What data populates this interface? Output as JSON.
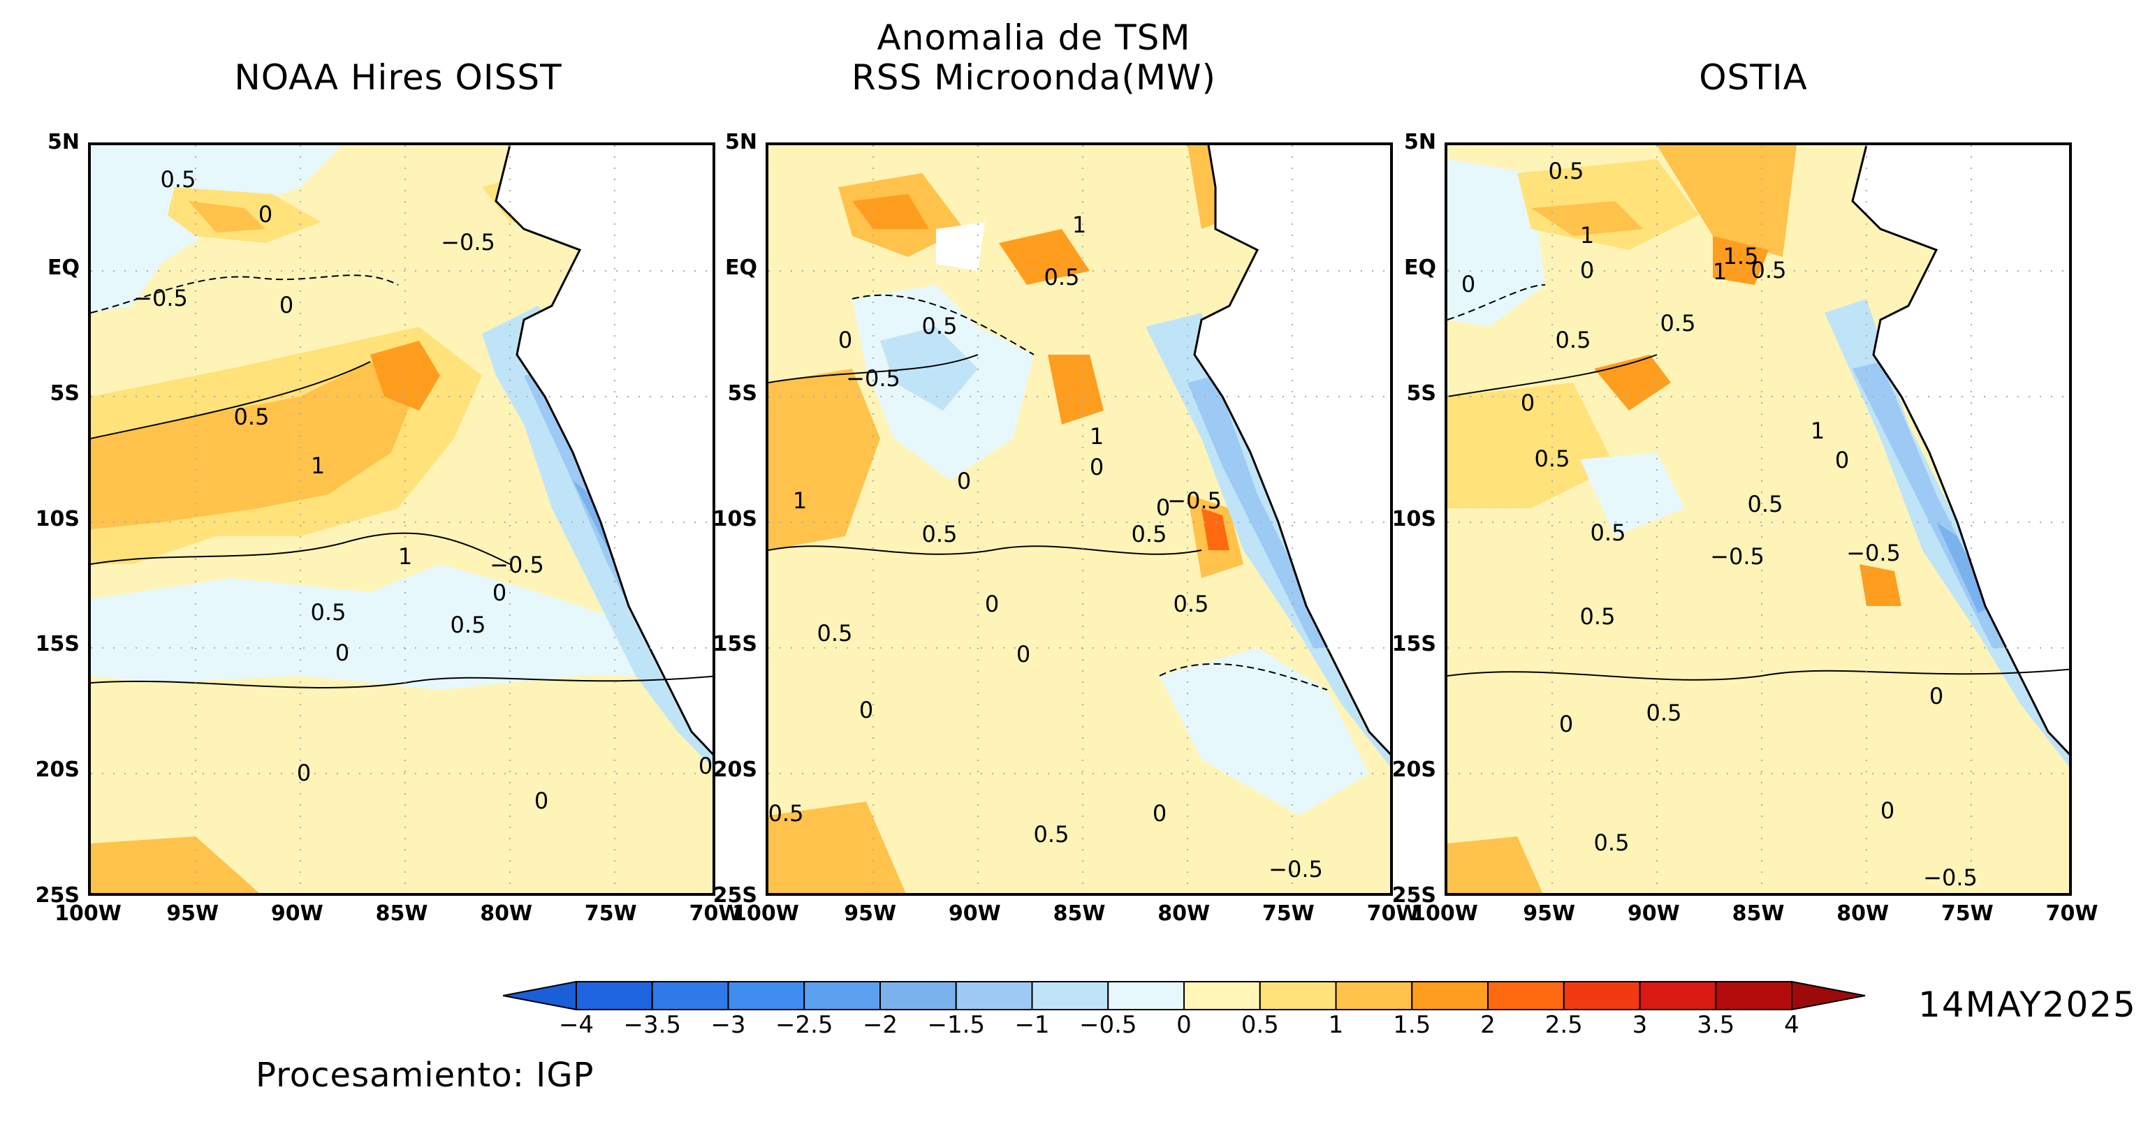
{
  "header": {
    "main_title_line1": "Anomalia de TSM",
    "main_title_line2": "RSS Microonda(MW)",
    "panel_titles": [
      "NOAA Hires OISST",
      "",
      "OSTIA"
    ]
  },
  "axes": {
    "lat_ticks": [
      "5N",
      "EQ",
      "5S",
      "10S",
      "15S",
      "20S",
      "25S"
    ],
    "lon_ticks": [
      "100W",
      "95W",
      "90W",
      "85W",
      "80W",
      "75W",
      "70W"
    ]
  },
  "colorbar": {
    "ticks": [
      "−4",
      "−3.5",
      "−3",
      "−2.5",
      "−2",
      "−1.5",
      "−1",
      "−0.5",
      "0",
      "0.5",
      "1",
      "1.5",
      "2",
      "2.5",
      "3",
      "3.5",
      "4"
    ],
    "colors": [
      "#1e63e0",
      "#2f7ae8",
      "#3f8df0",
      "#5aa0ee",
      "#7ab2ee",
      "#9ccaf4",
      "#bfe4f7",
      "#e6f8fb",
      "#fff6b8",
      "#ffe27a",
      "#ffc24a",
      "#ff9d1e",
      "#ff6a10",
      "#f23a12",
      "#d81a12",
      "#b40c0c"
    ],
    "under_color": "#1a5ed8",
    "over_color": "#9c0a0a"
  },
  "date": "14MAY2025",
  "footer": "Procesamiento: IGP",
  "panels": [
    {
      "contour_labels": [
        "0.5",
        "0",
        "−0.5",
        "−0.5",
        "0",
        "0.5",
        "1",
        "1",
        "0.5",
        "0",
        "0.5",
        "−0.5",
        "0",
        "0",
        "0",
        "0"
      ]
    },
    {
      "contour_labels": [
        "1",
        "0.5",
        "0.5",
        "0",
        "−0.5",
        "1",
        "0",
        "0",
        "1",
        "0.5",
        "0",
        "−0.5",
        "0.5",
        "0.5",
        "0.5",
        "0",
        "0",
        "0",
        "0.5",
        "0",
        "−0.5",
        "0.5"
      ]
    },
    {
      "contour_labels": [
        "0.5",
        "1",
        "0",
        "1.5",
        "0.5",
        "1",
        "0.5",
        "0",
        "0.5",
        "0",
        "1",
        "0",
        "0.5",
        "0.5",
        "−0.5",
        "0.5",
        "−0.5",
        "0",
        "0.5",
        "0",
        "0.5",
        "0.5",
        "0",
        "−0.5"
      ]
    }
  ]
}
